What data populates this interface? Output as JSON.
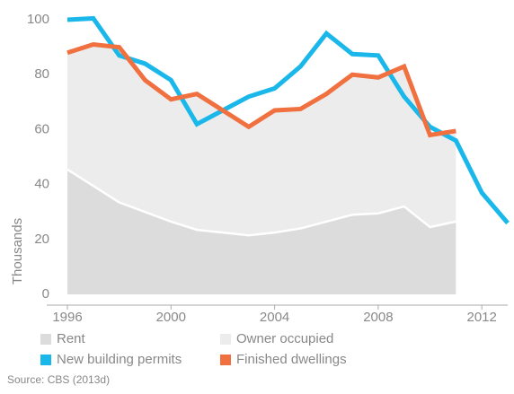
{
  "chart_data": {
    "type": "line",
    "y_label": "Thousands",
    "source": "Source: CBS (2013d)",
    "xlim": [
      1996,
      2013
    ],
    "xticks": [
      1996,
      2000,
      2004,
      2008,
      2012
    ],
    "ylim": [
      0,
      100
    ],
    "yticks": [
      0,
      20,
      40,
      60,
      80,
      100
    ],
    "series": [
      {
        "name": "Rent",
        "type": "area",
        "color": "#dcdcdc",
        "x": [
          1996,
          1997,
          1998,
          1999,
          2000,
          2001,
          2002,
          2003,
          2004,
          2005,
          2006,
          2007,
          2008,
          2009,
          2010,
          2011
        ],
        "values": [
          45.5,
          39.5,
          33.5,
          30,
          26.5,
          23.5,
          22.5,
          21.5,
          22.5,
          24,
          26.5,
          29,
          29.5,
          32,
          24.5,
          26.5
        ]
      },
      {
        "name": "Owner occupied",
        "type": "area",
        "color": "#ececec",
        "x": [
          1996,
          1997,
          1998,
          1999,
          2000,
          2001,
          2002,
          2003,
          2004,
          2005,
          2006,
          2007,
          2008,
          2009,
          2010,
          2011
        ],
        "values": [
          42.5,
          51.5,
          56.5,
          48,
          44.5,
          49.5,
          44.5,
          39.5,
          44.5,
          43.5,
          46.5,
          51,
          49.5,
          51,
          33.5,
          33
        ]
      },
      {
        "name": "New building permits",
        "type": "line",
        "color": "#1ab7ea",
        "x": [
          1996,
          1997,
          1998,
          1999,
          2000,
          2001,
          2002,
          2003,
          2004,
          2005,
          2006,
          2007,
          2008,
          2009,
          2010,
          2011,
          2012,
          2013
        ],
        "values": [
          100,
          100.5,
          87,
          84,
          78,
          62,
          67,
          72,
          75,
          83,
          95,
          87.5,
          87,
          72,
          61,
          56,
          37,
          26
        ]
      },
      {
        "name": "Finished dwellings",
        "type": "line",
        "color": "#f07040",
        "x": [
          1996,
          1997,
          1998,
          1999,
          2000,
          2001,
          2002,
          2003,
          2004,
          2005,
          2006,
          2007,
          2008,
          2009,
          2010,
          2011
        ],
        "values": [
          88,
          91,
          90,
          78,
          71,
          73,
          67,
          61,
          67,
          67.5,
          73,
          80,
          79,
          83,
          58,
          59.5
        ]
      }
    ]
  }
}
